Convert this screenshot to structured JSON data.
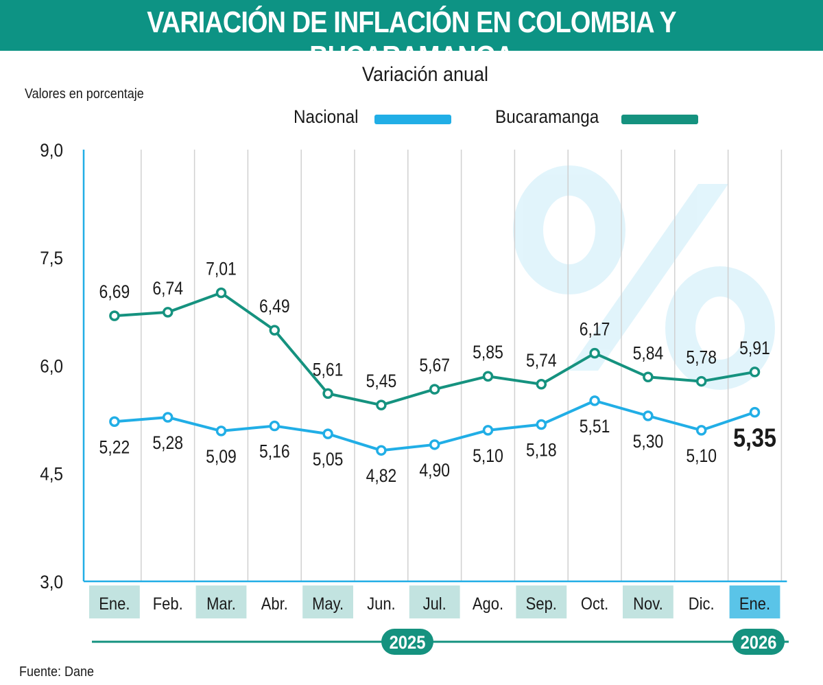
{
  "header": {
    "title": "VARIACIÓN DE INFLACIÓN EN COLOMBIA Y BUCARAMANGA"
  },
  "source": "Fuente: Dane",
  "colors": {
    "banner": "#0d9384",
    "nacional": "#21aee6",
    "bucaramanga": "#15927f",
    "band": "#c2e3e0",
    "highlight": "#5ac4e8"
  },
  "chart_data": {
    "type": "line",
    "title": "Variación anual",
    "ylabel": "Valores en porcentaje",
    "xlabel": "",
    "ylim": [
      3.0,
      9.0
    ],
    "yticks": [
      "3,0",
      "4,5",
      "6,0",
      "7,5",
      "9,0"
    ],
    "grid": "vertical",
    "legend_position": "top",
    "categories": [
      "Ene.",
      "Feb.",
      "Mar.",
      "Abr.",
      "May.",
      "Jun.",
      "Jul.",
      "Ago.",
      "Sep.",
      "Oct.",
      "Nov.",
      "Dic.",
      "Ene."
    ],
    "year_labels": [
      "2025",
      "2026"
    ],
    "series": [
      {
        "name": "Nacional",
        "values": [
          5.22,
          5.28,
          5.09,
          5.16,
          5.05,
          4.82,
          4.9,
          5.1,
          5.18,
          5.51,
          5.3,
          5.1,
          5.35
        ],
        "labels": [
          "5,22",
          "5,28",
          "5,09",
          "5,16",
          "5,05",
          "4,82",
          "4,90",
          "5,10",
          "5,18",
          "5,51",
          "5,30",
          "5,10",
          "5,35"
        ]
      },
      {
        "name": "Bucaramanga",
        "values": [
          6.69,
          6.74,
          7.01,
          6.49,
          5.61,
          5.45,
          5.67,
          5.85,
          5.74,
          6.17,
          5.84,
          5.78,
          5.91
        ],
        "labels": [
          "6,69",
          "6,74",
          "7,01",
          "6,49",
          "5,61",
          "5,45",
          "5,67",
          "5,85",
          "5,74",
          "6,17",
          "5,84",
          "5,78",
          "5,91"
        ]
      }
    ]
  }
}
